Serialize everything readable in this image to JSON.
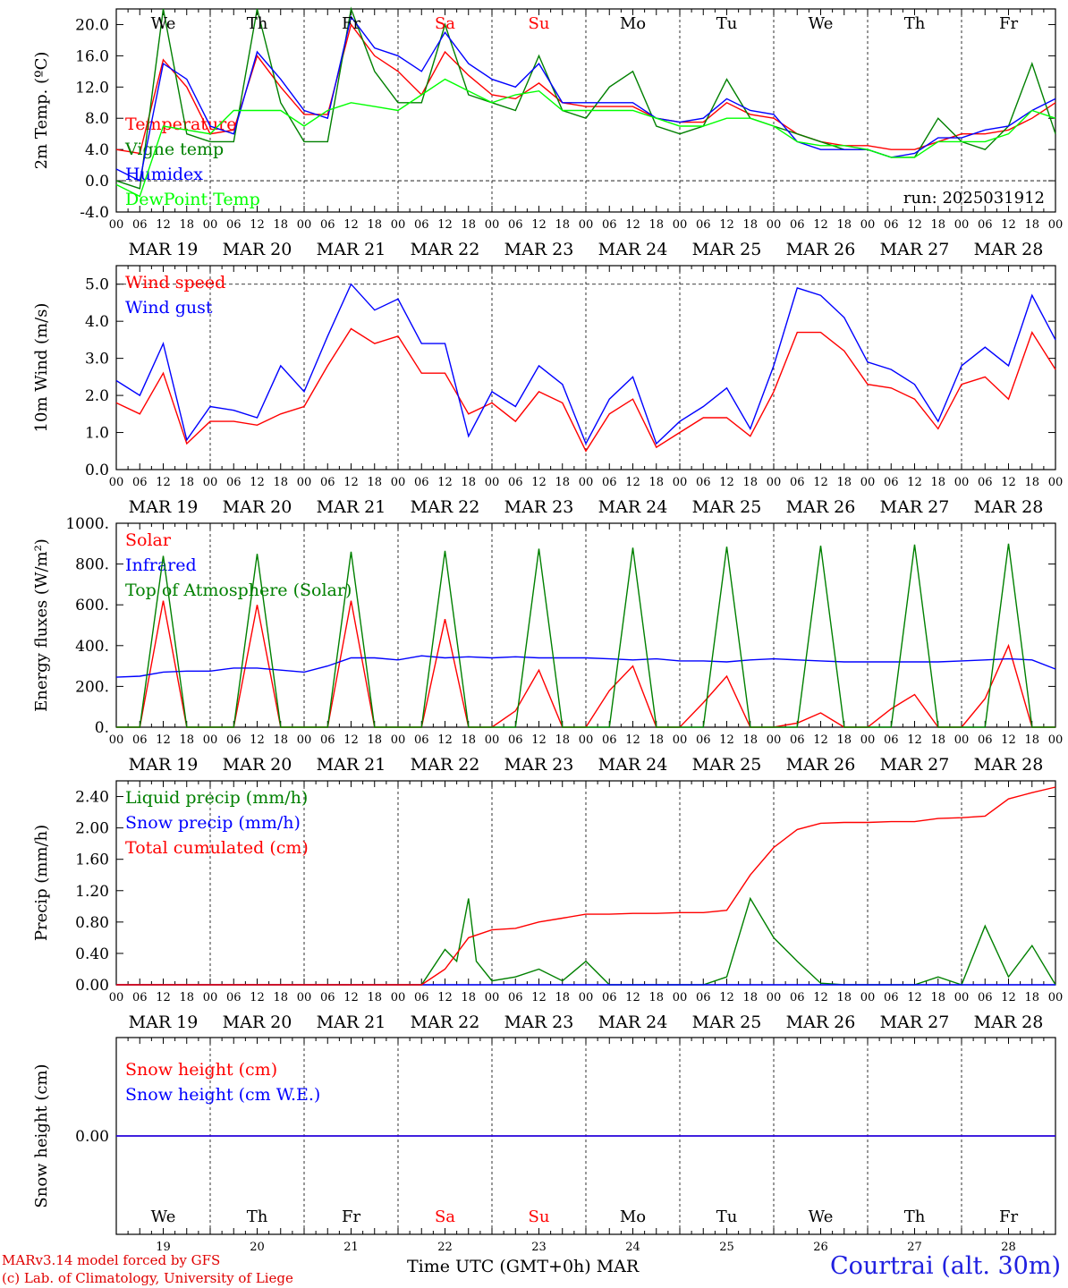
{
  "chart_data": [
    {
      "type": "line",
      "ylabel": "2m Temp. (ºC)",
      "ylim": [
        -4,
        22
      ],
      "yticks": [
        "-4.0",
        "0.0",
        "4.0",
        "8.0",
        "12.0",
        "16.0",
        "20.0"
      ],
      "ytick_values": [
        -4,
        0,
        4,
        8,
        12,
        16,
        20
      ],
      "dashed_levels": [
        0
      ],
      "annotation": "run: 2025031912",
      "series": [
        {
          "name": "Temperature",
          "color": "#ff0000",
          "x": [
            0,
            6,
            12,
            18,
            24,
            30,
            36,
            42,
            48,
            54,
            60,
            66,
            72,
            78,
            84,
            90,
            96,
            102,
            108,
            114,
            120,
            126,
            132,
            138,
            144,
            150,
            156,
            162,
            168,
            174,
            180,
            186,
            192,
            198,
            204,
            210,
            216,
            222,
            228,
            234,
            240
          ],
          "values": [
            4,
            3.5,
            15.5,
            12,
            6,
            6.5,
            16,
            12,
            8.5,
            8.5,
            20,
            16,
            14,
            11,
            16.5,
            13.5,
            11,
            10.5,
            12.5,
            10,
            9.5,
            9.5,
            9.5,
            8,
            7.5,
            7.5,
            10,
            8.5,
            8,
            6,
            5,
            4.5,
            4.5,
            4,
            4,
            5,
            6,
            6,
            6.5,
            8,
            10
          ]
        },
        {
          "name": "Vigne temp",
          "color": "#008000",
          "x": [
            0,
            6,
            12,
            18,
            24,
            30,
            36,
            42,
            48,
            54,
            60,
            66,
            72,
            78,
            84,
            90,
            96,
            102,
            108,
            114,
            120,
            126,
            132,
            138,
            144,
            150,
            156,
            162,
            168,
            174,
            180,
            186,
            192,
            198,
            204,
            210,
            216,
            222,
            228,
            234,
            240
          ],
          "values": [
            0,
            -1,
            22,
            6,
            5,
            5,
            22,
            10,
            5,
            5,
            22,
            14,
            10,
            10,
            20,
            11,
            10,
            9,
            16,
            9,
            8,
            12,
            14,
            7,
            6,
            7,
            13,
            8,
            7,
            6,
            5,
            4,
            4,
            3,
            3,
            8,
            5,
            4,
            7,
            15,
            6
          ]
        },
        {
          "name": "Humidex",
          "color": "#0000ff",
          "x": [
            0,
            6,
            12,
            18,
            24,
            30,
            36,
            42,
            48,
            54,
            60,
            66,
            72,
            78,
            84,
            90,
            96,
            102,
            108,
            114,
            120,
            126,
            132,
            138,
            144,
            150,
            156,
            162,
            168,
            174,
            180,
            186,
            192,
            198,
            204,
            210,
            216,
            222,
            228,
            234,
            240
          ],
          "values": [
            1.5,
            0,
            15,
            13,
            7,
            6,
            16.5,
            13,
            9,
            8,
            21,
            17,
            16,
            14,
            19,
            15,
            13,
            12,
            15,
            10,
            10,
            10,
            10,
            8,
            7.5,
            8,
            10.5,
            9,
            8.5,
            5,
            4,
            4,
            4,
            3,
            3.5,
            5.5,
            5.5,
            6.5,
            7,
            9,
            10.5
          ]
        },
        {
          "name": "DewPoint Temp",
          "color": "#00ff00",
          "x": [
            0,
            6,
            12,
            18,
            24,
            30,
            36,
            42,
            48,
            54,
            60,
            66,
            72,
            78,
            84,
            90,
            96,
            102,
            108,
            114,
            120,
            126,
            132,
            138,
            144,
            150,
            156,
            162,
            168,
            174,
            180,
            186,
            192,
            198,
            204,
            210,
            216,
            222,
            228,
            234,
            240
          ],
          "values": [
            -0.5,
            -2,
            7,
            6.5,
            6,
            9,
            9,
            9,
            7,
            9,
            10,
            9.5,
            9,
            11,
            13,
            11.5,
            10,
            11,
            11.5,
            9,
            9,
            9,
            9,
            8,
            7,
            7,
            8,
            8,
            7,
            5,
            4.5,
            4.5,
            4,
            3,
            3,
            5,
            5,
            5,
            6,
            9,
            8
          ]
        }
      ]
    },
    {
      "type": "line",
      "ylabel": "10m Wind (m/s)",
      "ylim": [
        0,
        5.5
      ],
      "yticks": [
        "0.0",
        "1.0",
        "2.0",
        "3.0",
        "4.0",
        "5.0"
      ],
      "ytick_values": [
        0,
        1,
        2,
        3,
        4,
        5
      ],
      "dashed_levels": [
        5
      ],
      "series": [
        {
          "name": "Wind speed",
          "color": "#ff0000",
          "x": [
            0,
            6,
            12,
            18,
            24,
            30,
            36,
            42,
            48,
            54,
            60,
            66,
            72,
            78,
            84,
            90,
            96,
            102,
            108,
            114,
            120,
            126,
            132,
            138,
            144,
            150,
            156,
            162,
            168,
            174,
            180,
            186,
            192,
            198,
            204,
            210,
            216,
            222,
            228,
            234,
            240
          ],
          "values": [
            1.8,
            1.5,
            2.6,
            0.7,
            1.3,
            1.3,
            1.2,
            1.5,
            1.7,
            2.8,
            3.8,
            3.4,
            3.6,
            2.6,
            2.6,
            1.5,
            1.8,
            1.3,
            2.1,
            1.8,
            0.5,
            1.5,
            1.9,
            0.6,
            1.0,
            1.4,
            1.4,
            0.9,
            2.1,
            3.7,
            3.7,
            3.2,
            2.3,
            2.2,
            1.9,
            1.1,
            2.3,
            2.5,
            1.9,
            3.7,
            2.7
          ]
        },
        {
          "name": "Wind gust",
          "color": "#0000ff",
          "x": [
            0,
            6,
            12,
            18,
            24,
            30,
            36,
            42,
            48,
            54,
            60,
            66,
            72,
            78,
            84,
            90,
            96,
            102,
            108,
            114,
            120,
            126,
            132,
            138,
            144,
            150,
            156,
            162,
            168,
            174,
            180,
            186,
            192,
            198,
            204,
            210,
            216,
            222,
            228,
            234,
            240
          ],
          "values": [
            2.4,
            2.0,
            3.4,
            0.8,
            1.7,
            1.6,
            1.4,
            2.8,
            2.1,
            3.6,
            5.0,
            4.3,
            4.6,
            3.4,
            3.4,
            0.9,
            2.1,
            1.7,
            2.8,
            2.3,
            0.7,
            1.9,
            2.5,
            0.7,
            1.3,
            1.7,
            2.2,
            1.1,
            2.8,
            4.9,
            4.7,
            4.1,
            2.9,
            2.7,
            2.3,
            1.3,
            2.8,
            3.3,
            2.8,
            4.7,
            3.5
          ]
        }
      ]
    },
    {
      "type": "line",
      "ylabel": "Energy fluxes (W/m²)",
      "ylim": [
        0,
        1000
      ],
      "yticks": [
        "0.",
        "200.",
        "400.",
        "600.",
        "800.",
        "1000."
      ],
      "ytick_values": [
        0,
        200,
        400,
        600,
        800,
        1000
      ],
      "series": [
        {
          "name": "Solar",
          "color": "#ff0000",
          "x": [
            0,
            6,
            12,
            18,
            24,
            30,
            36,
            42,
            48,
            54,
            60,
            66,
            72,
            78,
            84,
            90,
            96,
            102,
            108,
            114,
            120,
            126,
            132,
            138,
            144,
            150,
            156,
            162,
            168,
            174,
            180,
            186,
            192,
            198,
            204,
            210,
            216,
            222,
            228,
            234,
            240
          ],
          "values": [
            0,
            0,
            620,
            0,
            0,
            0,
            600,
            0,
            0,
            0,
            620,
            0,
            0,
            0,
            530,
            0,
            0,
            80,
            280,
            0,
            0,
            180,
            300,
            0,
            0,
            120,
            250,
            0,
            0,
            20,
            70,
            0,
            0,
            90,
            160,
            0,
            0,
            140,
            400,
            0,
            0
          ]
        },
        {
          "name": "Infrared",
          "color": "#0000ff",
          "x": [
            0,
            6,
            12,
            18,
            24,
            30,
            36,
            42,
            48,
            54,
            60,
            66,
            72,
            78,
            84,
            90,
            96,
            102,
            108,
            114,
            120,
            126,
            132,
            138,
            144,
            150,
            156,
            162,
            168,
            174,
            180,
            186,
            192,
            198,
            204,
            210,
            216,
            222,
            228,
            234,
            240
          ],
          "values": [
            245,
            250,
            270,
            275,
            275,
            290,
            290,
            280,
            270,
            300,
            340,
            340,
            330,
            350,
            340,
            345,
            340,
            345,
            340,
            340,
            340,
            335,
            330,
            335,
            325,
            325,
            320,
            330,
            335,
            330,
            325,
            320,
            320,
            320,
            320,
            320,
            325,
            330,
            335,
            330,
            285
          ]
        },
        {
          "name": "Top of Atmosphere (Solar)",
          "color": "#008000",
          "x": [
            0,
            6,
            12,
            18,
            24,
            30,
            36,
            42,
            48,
            54,
            60,
            66,
            72,
            78,
            84,
            90,
            96,
            102,
            108,
            114,
            120,
            126,
            132,
            138,
            144,
            150,
            156,
            162,
            168,
            174,
            180,
            186,
            192,
            198,
            204,
            210,
            216,
            222,
            228,
            234,
            240
          ],
          "values": [
            0,
            0,
            840,
            0,
            0,
            0,
            850,
            0,
            0,
            0,
            860,
            0,
            0,
            0,
            865,
            0,
            0,
            0,
            875,
            0,
            0,
            0,
            880,
            0,
            0,
            0,
            885,
            0,
            0,
            0,
            890,
            0,
            0,
            0,
            895,
            0,
            0,
            0,
            900,
            0,
            0
          ]
        }
      ]
    },
    {
      "type": "line",
      "ylabel": "Precip (mm/h)",
      "ylim": [
        0,
        2.6
      ],
      "yticks": [
        "0.00",
        "0.40",
        "0.80",
        "1.20",
        "1.60",
        "2.00",
        "2.40"
      ],
      "ytick_values": [
        0,
        0.4,
        0.8,
        1.2,
        1.6,
        2.0,
        2.4
      ],
      "series": [
        {
          "name": "Liquid precip (mm/h)",
          "color": "#008000",
          "x": [
            0,
            6,
            12,
            18,
            24,
            30,
            36,
            42,
            48,
            54,
            60,
            66,
            72,
            78,
            84,
            87,
            90,
            92,
            96,
            102,
            108,
            114,
            120,
            126,
            132,
            138,
            144,
            150,
            156,
            162,
            168,
            174,
            180,
            186,
            192,
            198,
            204,
            210,
            216,
            222,
            228,
            234,
            240
          ],
          "values": [
            0,
            0,
            0,
            0,
            0,
            0,
            0,
            0,
            0,
            0,
            0,
            0,
            0,
            0,
            0.45,
            0.3,
            1.1,
            0.3,
            0.05,
            0.1,
            0.2,
            0.05,
            0.3,
            0,
            0,
            0,
            0,
            0,
            0.1,
            1.1,
            0.6,
            0.3,
            0.02,
            0,
            0,
            0,
            0,
            0.1,
            0,
            0.75,
            0.1,
            0.5,
            0
          ]
        },
        {
          "name": "Snow precip (mm/h)",
          "color": "#0000ff",
          "x": [
            0,
            240
          ],
          "values": [
            0,
            0
          ]
        },
        {
          "name": "Total cumulated (cm)",
          "color": "#ff0000",
          "x": [
            0,
            6,
            12,
            18,
            24,
            30,
            36,
            42,
            48,
            54,
            60,
            66,
            72,
            78,
            84,
            90,
            96,
            102,
            108,
            114,
            120,
            126,
            132,
            138,
            144,
            150,
            156,
            162,
            168,
            174,
            180,
            186,
            192,
            198,
            204,
            210,
            216,
            222,
            228,
            234,
            240
          ],
          "values": [
            0,
            0,
            0,
            0,
            0,
            0,
            0,
            0,
            0,
            0,
            0,
            0,
            0,
            0,
            0.2,
            0.6,
            0.7,
            0.72,
            0.8,
            0.85,
            0.9,
            0.9,
            0.91,
            0.91,
            0.92,
            0.92,
            0.95,
            1.4,
            1.75,
            1.98,
            2.06,
            2.07,
            2.07,
            2.08,
            2.08,
            2.12,
            2.13,
            2.15,
            2.37,
            2.45,
            2.52
          ]
        }
      ]
    },
    {
      "type": "line",
      "ylabel": "Snow height (cm)",
      "ylim": [
        -1,
        1
      ],
      "yticks": [
        "0.00"
      ],
      "ytick_values": [
        0
      ],
      "series": [
        {
          "name": "Snow height (cm)",
          "color": "#ff0000",
          "x": [
            0,
            240
          ],
          "values": [
            0,
            0
          ]
        },
        {
          "name": "Snow height (cm W.E.)",
          "color": "#0000ff",
          "x": [
            0,
            240
          ],
          "values": [
            0,
            0
          ]
        }
      ]
    }
  ],
  "x_axis": {
    "hour_labels": [
      "00",
      "06",
      "12",
      "18"
    ],
    "end_label": "00",
    "dates": [
      "MAR 19",
      "MAR 20",
      "MAR 21",
      "MAR 22",
      "MAR 23",
      "MAR 24",
      "MAR 25",
      "MAR 26",
      "MAR 27",
      "MAR 28"
    ],
    "weekdays": [
      "We",
      "Th",
      "Fr",
      "Sa",
      "Su",
      "Mo",
      "Tu",
      "We",
      "Th",
      "Fr"
    ],
    "day_numbers": [
      "19",
      "20",
      "21",
      "22",
      "23",
      "24",
      "25",
      "26",
      "27",
      "28"
    ],
    "weekend_indices": [
      3,
      4
    ],
    "title": "Time UTC (GMT+0h)",
    "month": "MAR"
  },
  "credits": {
    "line1": "MARv3.14 model forced by GFS",
    "line2": "(c) Lab. of Climatology, University of Liege"
  },
  "station": "Courtrai (alt. 30m)",
  "colors": {
    "weekday": "#000000",
    "weekend": "#ff0000"
  }
}
